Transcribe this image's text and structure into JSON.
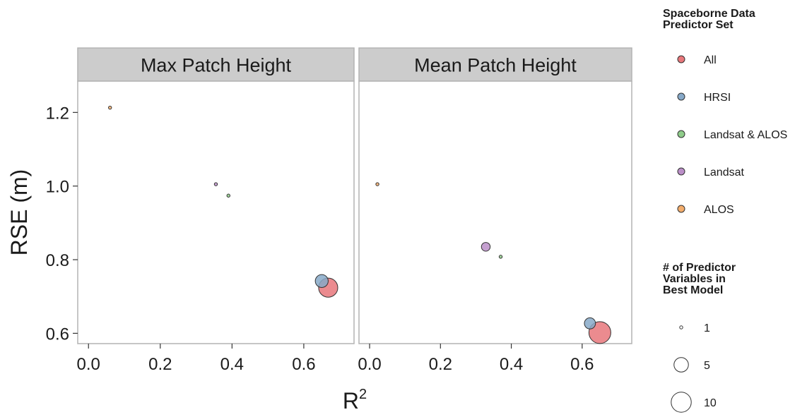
{
  "chart_data": {
    "type": "scatter",
    "xlabel": "R",
    "xlabel_superscript": "2",
    "ylabel": "RSE (m)",
    "xlim": [
      -0.03,
      0.74
    ],
    "ylim": [
      0.572,
      1.285
    ],
    "x_ticks": [
      "0.0",
      "0.2",
      "0.4",
      "0.6"
    ],
    "y_ticks": [
      "0.6",
      "0.8",
      "1.0",
      "1.2"
    ],
    "facets": [
      {
        "label": "Max Patch Height",
        "points": [
          {
            "group": "ALOS",
            "x": 0.06,
            "y": 1.213,
            "n": 1
          },
          {
            "group": "Landsat",
            "x": 0.355,
            "y": 1.005,
            "n": 1
          },
          {
            "group": "Landsat & ALOS",
            "x": 0.39,
            "y": 0.974,
            "n": 1
          },
          {
            "group": "HRSI",
            "x": 0.65,
            "y": 0.742,
            "n": 4
          },
          {
            "group": "All",
            "x": 0.668,
            "y": 0.724,
            "n": 9
          }
        ]
      },
      {
        "label": "Mean Patch Height",
        "points": [
          {
            "group": "ALOS",
            "x": 0.022,
            "y": 1.005,
            "n": 1
          },
          {
            "group": "Landsat",
            "x": 0.328,
            "y": 0.835,
            "n": 2
          },
          {
            "group": "Landsat & ALOS",
            "x": 0.37,
            "y": 0.808,
            "n": 1
          },
          {
            "group": "HRSI",
            "x": 0.622,
            "y": 0.627,
            "n": 3
          },
          {
            "group": "All",
            "x": 0.65,
            "y": 0.602,
            "n": 12
          }
        ]
      }
    ],
    "legend_color": {
      "title_lines": [
        "Spaceborne Data",
        "Predictor Set"
      ],
      "items": [
        {
          "label": "All",
          "color": "#e8777b"
        },
        {
          "label": "HRSI",
          "color": "#87a9c8"
        },
        {
          "label": "Landsat & ALOS",
          "color": "#8fcc8a"
        },
        {
          "label": "Landsat",
          "color": "#bb8fc8"
        },
        {
          "label": "ALOS",
          "color": "#f3ad6c"
        }
      ]
    },
    "legend_size": {
      "title_lines": [
        "# of Predictor",
        "Variables in",
        "Best Model"
      ],
      "items": [
        {
          "label": "1",
          "n": 1
        },
        {
          "label": "5",
          "n": 5
        },
        {
          "label": "10",
          "n": 10
        }
      ]
    },
    "legend_placement": "right",
    "grid": false
  }
}
